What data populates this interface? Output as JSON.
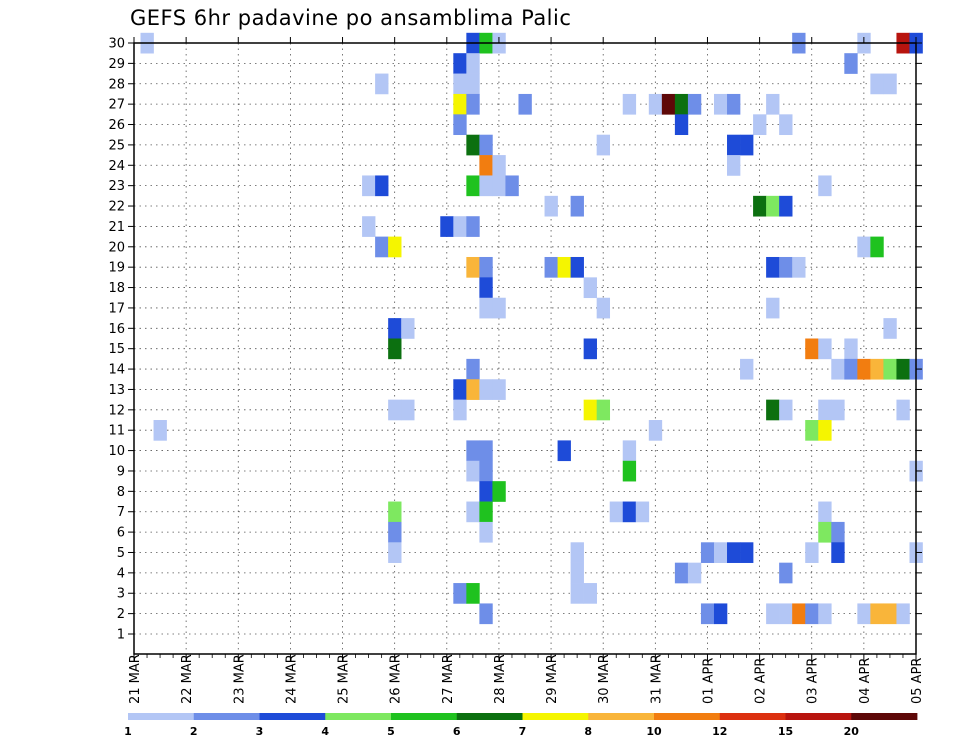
{
  "chart_data": {
    "type": "heatmap",
    "title": "GEFS 6hr padavine po ansamblima Palic",
    "x_tick_labels": [
      "21 MAR",
      "22 MAR",
      "23 MAR",
      "24 MAR",
      "25 MAR",
      "26 MAR",
      "27 MAR",
      "28 MAR",
      "29 MAR",
      "30 MAR",
      "31 MAR",
      "01 APR",
      "02 APR",
      "03 APR",
      "04 APR",
      "05 APR"
    ],
    "x_unit": "6-hour steps since 21 MAR 00UTC",
    "x_range": [
      0,
      60
    ],
    "y_tick_labels": [
      "1",
      "2",
      "3",
      "4",
      "5",
      "6",
      "7",
      "8",
      "9",
      "10",
      "11",
      "12",
      "13",
      "14",
      "15",
      "16",
      "17",
      "18",
      "19",
      "20",
      "21",
      "22",
      "23",
      "24",
      "25",
      "26",
      "27",
      "28",
      "29",
      "30"
    ],
    "y_range": [
      1,
      30
    ],
    "grid": true,
    "colorbar": {
      "labels": [
        "1",
        "2",
        "3",
        "4",
        "5",
        "6",
        "7",
        "8",
        "10",
        "12",
        "15",
        "20"
      ],
      "colors": [
        "#b3c6f5",
        "#6e8ee8",
        "#1e4bd8",
        "#7ee860",
        "#1fc21f",
        "#0c7010",
        "#f5f500",
        "#f9b53a",
        "#f27d10",
        "#dc3010",
        "#b8140e",
        "#5e0808"
      ]
    },
    "cells": [
      [
        1,
        30,
        1
      ],
      [
        26,
        30,
        3
      ],
      [
        27,
        30,
        5
      ],
      [
        28,
        30,
        1
      ],
      [
        51,
        30,
        2
      ],
      [
        56,
        30,
        1
      ],
      [
        59,
        30,
        11
      ],
      [
        60,
        30,
        3
      ],
      [
        25,
        29,
        3
      ],
      [
        26,
        29,
        1
      ],
      [
        55,
        29,
        2
      ],
      [
        19,
        28,
        1
      ],
      [
        25,
        28,
        1
      ],
      [
        26,
        28,
        1
      ],
      [
        57,
        28,
        1
      ],
      [
        58,
        28,
        1
      ],
      [
        25,
        27,
        7
      ],
      [
        26,
        27,
        2
      ],
      [
        30,
        27,
        2
      ],
      [
        38,
        27,
        1
      ],
      [
        40,
        27,
        1
      ],
      [
        41,
        27,
        12
      ],
      [
        42,
        27,
        6
      ],
      [
        43,
        27,
        2
      ],
      [
        45,
        27,
        1
      ],
      [
        46,
        27,
        2
      ],
      [
        49,
        27,
        1
      ],
      [
        25,
        26,
        2
      ],
      [
        42,
        26,
        3
      ],
      [
        48,
        26,
        1
      ],
      [
        50,
        26,
        1
      ],
      [
        26,
        25,
        6
      ],
      [
        27,
        25,
        2
      ],
      [
        36,
        25,
        1
      ],
      [
        46,
        25,
        3
      ],
      [
        47,
        25,
        3
      ],
      [
        27,
        24,
        9
      ],
      [
        28,
        24,
        1
      ],
      [
        46,
        24,
        1
      ],
      [
        18,
        23,
        1
      ],
      [
        19,
        23,
        3
      ],
      [
        26,
        23,
        5
      ],
      [
        27,
        23,
        1
      ],
      [
        28,
        23,
        1
      ],
      [
        29,
        23,
        2
      ],
      [
        53,
        23,
        1
      ],
      [
        32,
        22,
        1
      ],
      [
        34,
        22,
        2
      ],
      [
        48,
        22,
        6
      ],
      [
        49,
        22,
        4
      ],
      [
        50,
        22,
        3
      ],
      [
        18,
        21,
        1
      ],
      [
        24,
        21,
        3
      ],
      [
        25,
        21,
        1
      ],
      [
        26,
        21,
        2
      ],
      [
        19,
        20,
        2
      ],
      [
        20,
        20,
        7
      ],
      [
        56,
        20,
        1
      ],
      [
        57,
        20,
        5
      ],
      [
        26,
        19,
        8
      ],
      [
        27,
        19,
        2
      ],
      [
        32,
        19,
        2
      ],
      [
        33,
        19,
        7
      ],
      [
        34,
        19,
        3
      ],
      [
        49,
        19,
        3
      ],
      [
        50,
        19,
        2
      ],
      [
        51,
        19,
        1
      ],
      [
        27,
        18,
        3
      ],
      [
        35,
        18,
        1
      ],
      [
        27,
        17,
        1
      ],
      [
        28,
        17,
        1
      ],
      [
        36,
        17,
        1
      ],
      [
        49,
        17,
        1
      ],
      [
        20,
        16,
        3
      ],
      [
        21,
        16,
        1
      ],
      [
        58,
        16,
        1
      ],
      [
        20,
        15,
        6
      ],
      [
        35,
        15,
        3
      ],
      [
        52,
        15,
        9
      ],
      [
        53,
        15,
        1
      ],
      [
        55,
        15,
        1
      ],
      [
        26,
        14,
        2
      ],
      [
        47,
        14,
        1
      ],
      [
        54,
        14,
        1
      ],
      [
        55,
        14,
        2
      ],
      [
        56,
        14,
        9
      ],
      [
        57,
        14,
        8
      ],
      [
        58,
        14,
        4
      ],
      [
        59,
        14,
        6
      ],
      [
        60,
        14,
        2
      ],
      [
        25,
        13,
        3
      ],
      [
        26,
        13,
        8
      ],
      [
        27,
        13,
        1
      ],
      [
        28,
        13,
        1
      ],
      [
        20,
        12,
        1
      ],
      [
        21,
        12,
        1
      ],
      [
        25,
        12,
        1
      ],
      [
        35,
        12,
        7
      ],
      [
        36,
        12,
        4
      ],
      [
        49,
        12,
        6
      ],
      [
        50,
        12,
        1
      ],
      [
        53,
        12,
        1
      ],
      [
        54,
        12,
        1
      ],
      [
        59,
        12,
        1
      ],
      [
        2,
        11,
        1
      ],
      [
        40,
        11,
        1
      ],
      [
        52,
        11,
        4
      ],
      [
        53,
        11,
        7
      ],
      [
        26,
        10,
        2
      ],
      [
        27,
        10,
        2
      ],
      [
        33,
        10,
        3
      ],
      [
        38,
        10,
        1
      ],
      [
        26,
        9,
        1
      ],
      [
        27,
        9,
        2
      ],
      [
        38,
        9,
        5
      ],
      [
        60,
        9,
        1
      ],
      [
        27,
        8,
        3
      ],
      [
        28,
        8,
        5
      ],
      [
        20,
        7,
        4
      ],
      [
        26,
        7,
        1
      ],
      [
        27,
        7,
        5
      ],
      [
        37,
        7,
        1
      ],
      [
        38,
        7,
        3
      ],
      [
        39,
        7,
        1
      ],
      [
        53,
        7,
        1
      ],
      [
        20,
        6,
        2
      ],
      [
        27,
        6,
        1
      ],
      [
        53,
        6,
        4
      ],
      [
        54,
        6,
        2
      ],
      [
        20,
        5,
        1
      ],
      [
        34,
        5,
        1
      ],
      [
        44,
        5,
        2
      ],
      [
        45,
        5,
        1
      ],
      [
        46,
        5,
        3
      ],
      [
        47,
        5,
        3
      ],
      [
        52,
        5,
        1
      ],
      [
        54,
        5,
        3
      ],
      [
        60,
        5,
        1
      ],
      [
        34,
        4,
        1
      ],
      [
        42,
        4,
        2
      ],
      [
        43,
        4,
        1
      ],
      [
        50,
        4,
        2
      ],
      [
        25,
        3,
        2
      ],
      [
        26,
        3,
        5
      ],
      [
        34,
        3,
        1
      ],
      [
        35,
        3,
        1
      ],
      [
        27,
        2,
        2
      ],
      [
        44,
        2,
        2
      ],
      [
        45,
        2,
        3
      ],
      [
        49,
        2,
        1
      ],
      [
        50,
        2,
        1
      ],
      [
        51,
        2,
        9
      ],
      [
        52,
        2,
        2
      ],
      [
        53,
        2,
        1
      ],
      [
        56,
        2,
        1
      ],
      [
        57,
        2,
        8
      ],
      [
        58,
        2,
        8
      ],
      [
        59,
        2,
        1
      ]
    ]
  }
}
